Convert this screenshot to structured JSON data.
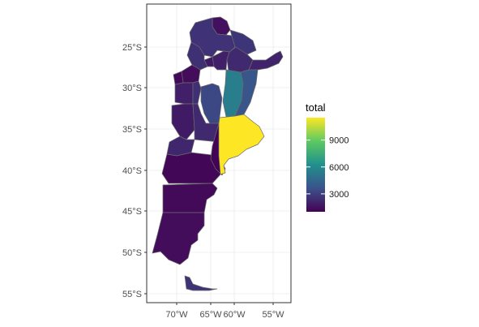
{
  "chart_data": {
    "type": "choropleth",
    "x_ticks": [
      "70°W",
      "65°W",
      "60°W",
      "55°W"
    ],
    "y_ticks": [
      "25°S",
      "30°S",
      "35°S",
      "40°S",
      "45°S",
      "50°S",
      "55°S"
    ],
    "legend": {
      "title": "total",
      "ticks": [
        "9000",
        "6000",
        "3000"
      ],
      "range": [
        1000,
        11500
      ],
      "colors": [
        "#440154",
        "#3b528b",
        "#21908d",
        "#5dc963",
        "#fde725"
      ]
    },
    "grid": true,
    "regions": [
      {
        "value": 1500
      },
      {
        "value": 2600
      },
      {
        "value": 2700
      },
      {
        "value": 2300
      },
      {
        "value": 2100
      },
      {
        "value": 2000
      },
      {
        "value": 1800
      },
      {
        "value": 2500
      },
      {
        "value": 1400
      },
      {
        "value": 2000
      },
      {
        "value": 2500
      },
      {
        "value": 3300
      },
      {
        "value": 5500
      },
      {
        "value": 3800
      },
      {
        "value": 1800
      },
      {
        "value": 2300
      },
      {
        "value": 2200
      },
      {
        "value": 1200
      },
      {
        "value": 1300
      },
      {
        "value": 1400
      },
      {
        "value": 2600
      },
      {
        "value": 1100
      },
      {
        "value": 1300
      },
      {
        "value": 11500
      }
    ]
  }
}
